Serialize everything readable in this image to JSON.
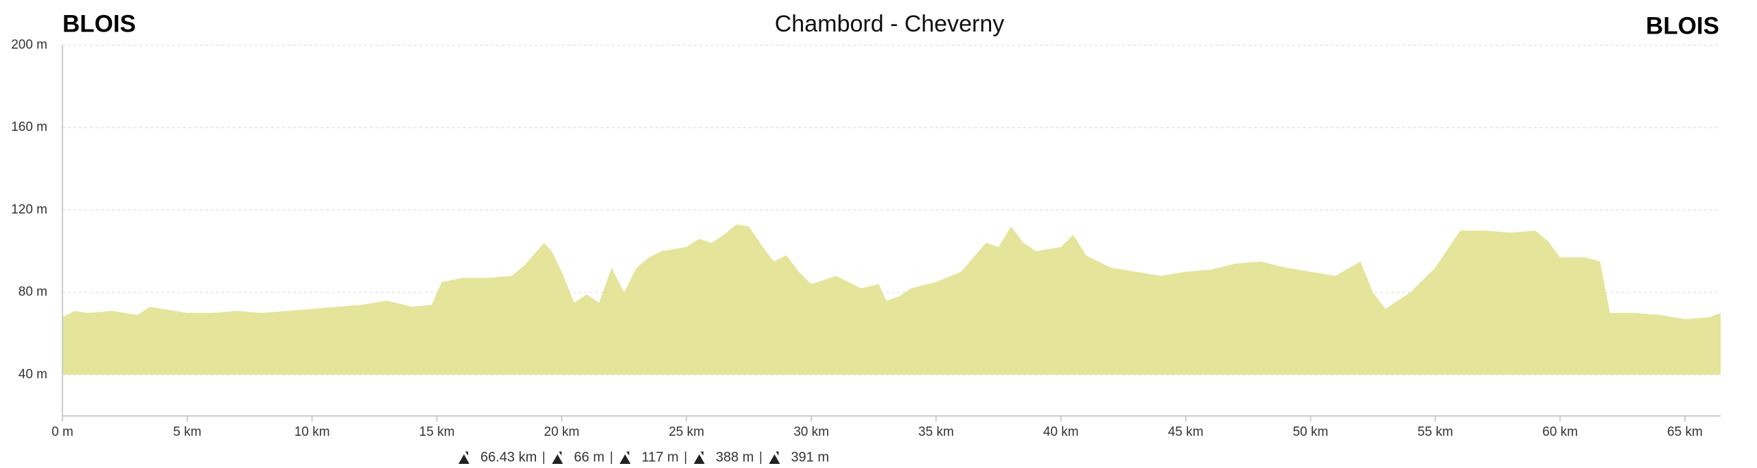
{
  "chart_data": {
    "type": "area",
    "title": "Chambord - Cheverny",
    "start_label": "BLOIS",
    "end_label": "BLOIS",
    "x": [
      0,
      0.5,
      1,
      2,
      3,
      3.5,
      4,
      5,
      6,
      7,
      8,
      9,
      10,
      11,
      12,
      13,
      14,
      14.8,
      15,
      15.2,
      16,
      17,
      18,
      18.5,
      19,
      19.3,
      19.6,
      20,
      20.5,
      21,
      21.5,
      22,
      22.5,
      23,
      23.5,
      24,
      25,
      25.5,
      26,
      26.5,
      27,
      27.5,
      28,
      28.5,
      29,
      29.5,
      30,
      31,
      32,
      32.7,
      33,
      33.5,
      34,
      35,
      36,
      37,
      37.5,
      38,
      38.5,
      39,
      40,
      40.5,
      41,
      42,
      43,
      44,
      45,
      46,
      47,
      48,
      49,
      50,
      51,
      52,
      52.5,
      53,
      54,
      55,
      56,
      57,
      58,
      59,
      59.5,
      60,
      61,
      61.6,
      62,
      63,
      64,
      65,
      66,
      66.43
    ],
    "values": [
      68,
      71,
      70,
      71,
      69,
      73,
      72,
      70,
      70,
      71,
      70,
      71,
      72,
      73,
      74,
      76,
      73,
      74,
      80,
      85,
      87,
      87,
      88,
      93,
      100,
      104,
      100,
      90,
      75,
      79,
      75,
      92,
      80,
      92,
      97,
      100,
      102,
      106,
      104,
      108,
      113,
      112,
      103,
      95,
      98,
      90,
      84,
      88,
      82,
      84,
      76,
      78,
      82,
      85,
      90,
      104,
      102,
      112,
      104,
      100,
      102,
      108,
      98,
      92,
      90,
      88,
      90,
      91,
      94,
      95,
      92,
      90,
      88,
      95,
      80,
      72,
      80,
      92,
      110,
      110,
      109,
      110,
      105,
      97,
      97,
      95,
      70,
      70,
      69,
      67,
      68,
      70
    ],
    "color": "#e4e49b",
    "xlim": [
      0,
      66.43
    ],
    "xticks": [
      {
        "value": 0,
        "label": "0 m"
      },
      {
        "value": 5,
        "label": "5 km"
      },
      {
        "value": 10,
        "label": "10 km"
      },
      {
        "value": 15,
        "label": "15 km"
      },
      {
        "value": 20,
        "label": "20 km"
      },
      {
        "value": 25,
        "label": "25 km"
      },
      {
        "value": 30,
        "label": "30 km"
      },
      {
        "value": 35,
        "label": "35 km"
      },
      {
        "value": 40,
        "label": "40 km"
      },
      {
        "value": 45,
        "label": "45 km"
      },
      {
        "value": 50,
        "label": "50 km"
      },
      {
        "value": 55,
        "label": "55 km"
      },
      {
        "value": 60,
        "label": "60 km"
      },
      {
        "value": 65,
        "label": "65 km"
      }
    ],
    "ylim": [
      20,
      200
    ],
    "yticks": [
      {
        "value": 40,
        "label": "40 m"
      },
      {
        "value": 80,
        "label": "80 m"
      },
      {
        "value": 120,
        "label": "120 m"
      },
      {
        "value": 160,
        "label": "160 m"
      },
      {
        "value": 200,
        "label": "200 m"
      }
    ],
    "grid": true,
    "stats": [
      {
        "value": 66.43,
        "label": "66.43 km"
      },
      {
        "value": 66,
        "label": "66 m"
      },
      {
        "value": 117,
        "label": "117 m"
      },
      {
        "value": 388,
        "label": "388 m"
      },
      {
        "value": 391,
        "label": "391 m"
      }
    ]
  }
}
